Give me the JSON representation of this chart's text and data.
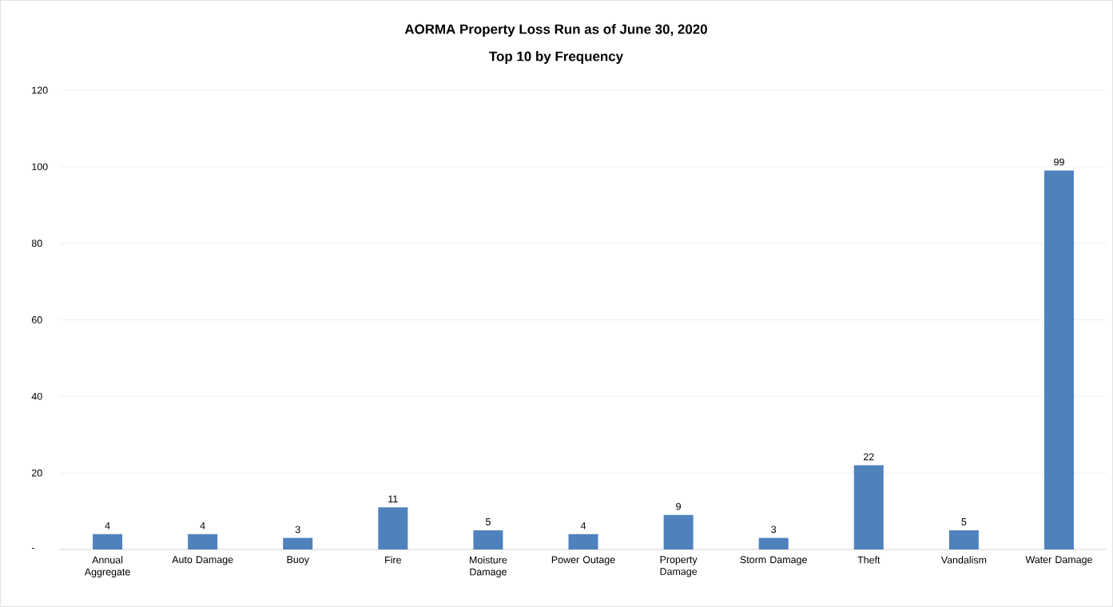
{
  "chart_data": {
    "type": "bar",
    "title": "AORMA Property Loss Run as of June 30, 2020",
    "subtitle": "Top 10 by Frequency",
    "categories": [
      "Annual Aggregate",
      "Auto Damage",
      "Buoy",
      "Fire",
      "Moisture Damage",
      "Power Outage",
      "Property Damage",
      "Storm Damage",
      "Theft",
      "Vandalism",
      "Water Damage"
    ],
    "values": [
      4,
      4,
      3,
      11,
      5,
      4,
      9,
      3,
      22,
      5,
      99
    ],
    "color": "#4f81bd",
    "ylim": [
      0,
      120
    ],
    "yticks": [
      {
        "value": 0,
        "label": "-"
      },
      20,
      40,
      60,
      80,
      100,
      120
    ],
    "grid": "y",
    "data_labels": true
  }
}
